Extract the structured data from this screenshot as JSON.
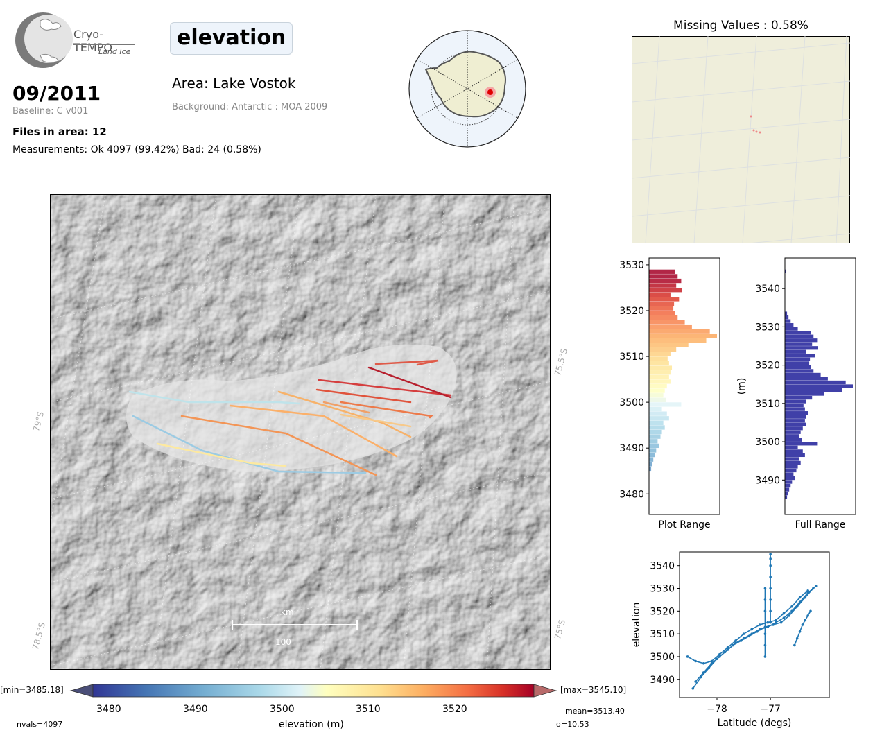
{
  "header": {
    "logo": {
      "name": "Cryo-TEMPO",
      "sub": "Land Ice"
    },
    "parameter": "elevation",
    "date": "09/2011",
    "baseline": "Baseline: C v001",
    "area": "Area: Lake Vostok",
    "background": "Background: Antarctic : MOA 2009",
    "files": "Files in area: 12",
    "measurements": "Measurements: Ok 4097 (99.42%) Bad: 24 (0.58%)"
  },
  "missing": {
    "title": "Missing Values : 0.58%"
  },
  "main_map": {
    "lat_labels": [
      "79°S",
      "78.5°S"
    ],
    "lon_labels": [
      "75.5°S",
      "75°S"
    ],
    "scale_unit": "km",
    "scale_value": "100"
  },
  "colors": {
    "bar": "#4040a8",
    "line": "#1f77b4",
    "missing_bg": "#efeedb"
  },
  "colorbar": {
    "min_label": "[min=3485.18]",
    "max_label": "[max=3545.10]",
    "ticks": [
      "3480",
      "3490",
      "3500",
      "3510",
      "3520"
    ],
    "title": "elevation (m)",
    "nvals": "nvals=4097",
    "mean": "mean=3513.40",
    "sigma": "σ=10.53"
  },
  "chart_data": [
    {
      "type": "bar",
      "orientation": "horizontal",
      "xlabel": "Plot Range",
      "ylabel": "",
      "ylim": [
        3475.5,
        3531.5
      ],
      "yticks": [
        3480,
        3490,
        3500,
        3510,
        3520,
        3530
      ],
      "bins": [
        3485.5,
        3486.5,
        3487.5,
        3488.5,
        3489.5,
        3490.5,
        3491.5,
        3492.5,
        3493.5,
        3494.5,
        3495.5,
        3496.5,
        3497.5,
        3498.5,
        3499.5,
        3500.5,
        3501.5,
        3502.5,
        3503.5,
        3504.5,
        3505.5,
        3506.5,
        3507.5,
        3508.5,
        3509.5,
        3510.5,
        3511.5,
        3512.5,
        3513.5,
        3514.5,
        3515.5,
        3516.5,
        3517.5,
        3518.5,
        3519.5,
        3520.5,
        3521.5,
        3522.5,
        3523.5,
        3524.5,
        3525.5,
        3526.5,
        3527.5,
        3528.5
      ],
      "counts": [
        3,
        4,
        6,
        8,
        10,
        14,
        12,
        16,
        18,
        22,
        20,
        28,
        25,
        18,
        45,
        24,
        20,
        22,
        25,
        30,
        28,
        30,
        32,
        28,
        26,
        30,
        38,
        55,
        80,
        95,
        85,
        60,
        50,
        40,
        36,
        34,
        35,
        42,
        30,
        46,
        38,
        45,
        40,
        36
      ]
    },
    {
      "type": "bar",
      "orientation": "horizontal",
      "xlabel": "Full Range",
      "ylabel": "(m)",
      "ylim": [
        3481,
        3548
      ],
      "yticks": [
        3490,
        3500,
        3510,
        3520,
        3530,
        3540
      ],
      "bins": [
        3485.5,
        3486.5,
        3487.5,
        3488.5,
        3489.5,
        3490.5,
        3491.5,
        3492.5,
        3493.5,
        3494.5,
        3495.5,
        3496.5,
        3497.5,
        3498.5,
        3499.5,
        3500.5,
        3501.5,
        3502.5,
        3503.5,
        3504.5,
        3505.5,
        3506.5,
        3507.5,
        3508.5,
        3509.5,
        3510.5,
        3511.5,
        3512.5,
        3513.5,
        3514.5,
        3515.5,
        3516.5,
        3517.5,
        3518.5,
        3519.5,
        3520.5,
        3521.5,
        3522.5,
        3523.5,
        3524.5,
        3525.5,
        3526.5,
        3527.5,
        3528.5,
        3529.5,
        3530.5,
        3531.5,
        3532.5,
        3533.5,
        3544.5
      ],
      "counts": [
        3,
        4,
        6,
        8,
        10,
        14,
        12,
        16,
        18,
        22,
        20,
        28,
        25,
        18,
        45,
        24,
        20,
        22,
        25,
        30,
        28,
        30,
        32,
        28,
        26,
        30,
        38,
        55,
        80,
        95,
        85,
        60,
        50,
        40,
        36,
        34,
        35,
        42,
        30,
        46,
        38,
        45,
        40,
        36,
        18,
        12,
        8,
        5,
        3,
        1
      ]
    },
    {
      "type": "scatter",
      "title": "",
      "xlabel": "Latitude (degs)",
      "ylabel": "elevation",
      "xlim": [
        -78.7,
        -75.9
      ],
      "ylim": [
        3482,
        3546
      ],
      "xticks": [
        -78,
        -77
      ],
      "yticks": [
        3490,
        3500,
        3510,
        3520,
        3530,
        3540
      ],
      "series": [
        {
          "x": [
            -78.45,
            -78.3,
            -78.15,
            -78.0,
            -77.85,
            -77.7,
            -77.55,
            -77.4,
            -77.25,
            -77.1,
            -76.95,
            -76.8,
            -76.65,
            -76.5,
            -76.35,
            -76.2
          ],
          "y": [
            3486,
            3491,
            3495,
            3499,
            3502,
            3505,
            3507,
            3509,
            3511,
            3513,
            3514,
            3515,
            3518,
            3522,
            3526,
            3530
          ]
        },
        {
          "x": [
            -78.4,
            -78.25,
            -78.1,
            -77.95,
            -77.8,
            -77.65,
            -77.5,
            -77.35,
            -77.2,
            -77.05,
            -76.9,
            -76.75,
            -76.6,
            -76.45,
            -76.3,
            -76.15
          ],
          "y": [
            3489,
            3493,
            3497,
            3500,
            3503,
            3506,
            3508,
            3510,
            3512,
            3513,
            3515,
            3517,
            3520,
            3524,
            3528,
            3531
          ]
        },
        {
          "x": [
            -78.55,
            -78.4,
            -78.25,
            -78.1,
            -77.95,
            -77.8,
            -77.65,
            -77.5,
            -77.35,
            -77.2,
            -77.05,
            -76.9,
            -76.75,
            -76.6,
            -76.45,
            -76.3
          ],
          "y": [
            3500,
            3498,
            3497,
            3498,
            3501,
            3504,
            3507,
            3510,
            3512,
            3514,
            3515,
            3516,
            3519,
            3522,
            3526,
            3529
          ]
        },
        {
          "x": [
            -77.0,
            -77.0,
            -77.0,
            -77.0,
            -77.0,
            -77.0,
            -77.0,
            -77.0
          ],
          "y": [
            3515,
            3520,
            3525,
            3530,
            3535,
            3540,
            3543,
            3545
          ]
        },
        {
          "x": [
            -77.1,
            -77.1,
            -77.1,
            -77.1,
            -77.1,
            -77.1
          ],
          "y": [
            3500,
            3505,
            3510,
            3520,
            3525,
            3530
          ]
        },
        {
          "x": [
            -76.55,
            -76.5,
            -76.45,
            -76.4,
            -76.35,
            -76.3,
            -76.25
          ],
          "y": [
            3505,
            3508,
            3511,
            3514,
            3516,
            3518,
            3520
          ]
        }
      ]
    }
  ]
}
